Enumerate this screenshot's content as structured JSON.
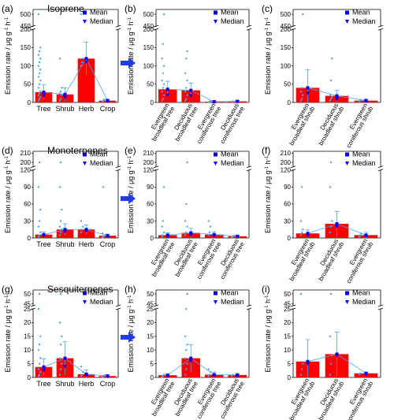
{
  "figure": {
    "legend": {
      "mean": "Mean",
      "median": "Median"
    },
    "ylabel_text": "Emission rate / μg g",
    "ylabel_sup": "-1",
    "ylabel_unit": " h",
    "colors": {
      "bar": "#ff0000",
      "mean": "#0000ff",
      "median": "#0000ff",
      "points": "#4da6e8",
      "line": "#4da6e8",
      "arrow": "#1f3ee6"
    }
  },
  "chart_data": [
    {
      "panel": "(a)",
      "title": "Isoprene",
      "type": "bar",
      "categories": [
        "Tree",
        "Shrub",
        "Herb",
        "Crop"
      ],
      "values": [
        28,
        22,
        120,
        5
      ],
      "mean": [
        28,
        22,
        120,
        5
      ],
      "median": [
        18,
        14,
        110,
        4
      ],
      "error": [
        20,
        18,
        45,
        4
      ],
      "points": [
        [
          5,
          10,
          15,
          20,
          25,
          30,
          40,
          50,
          60,
          70,
          80,
          90,
          100,
          110,
          120,
          130,
          140,
          150,
          500
        ],
        [
          5,
          10,
          20,
          25,
          30,
          40,
          120,
          500
        ],
        [
          100,
          110,
          120,
          500
        ],
        [
          3,
          5,
          8
        ]
      ],
      "yticks_low": [
        0,
        50,
        100,
        150,
        200
      ],
      "yticks_high": [
        450,
        500
      ],
      "ylim_low": [
        0,
        200
      ],
      "ylim_high": [
        450,
        520
      ]
    },
    {
      "panel": "(b)",
      "title": "",
      "type": "bar",
      "categories": [
        "Evergreen broadleaf tree",
        "Deciduous broadleaf tree",
        "Evergreen coniferous tree",
        "Deciduous coniferous tree"
      ],
      "values": [
        36,
        33,
        2,
        3
      ],
      "mean": [
        36,
        33,
        2,
        3
      ],
      "median": [
        20,
        18,
        1,
        2
      ],
      "error": [
        22,
        20,
        2,
        2
      ],
      "points": [
        [
          5,
          10,
          20,
          30,
          40,
          50,
          60,
          80,
          100,
          120,
          160,
          500
        ],
        [
          5,
          10,
          20,
          30,
          40,
          60,
          80,
          120,
          140
        ],
        [
          1,
          2,
          3
        ],
        [
          2,
          3
        ]
      ],
      "yticks_low": [
        0,
        50,
        100,
        150,
        200
      ],
      "yticks_high": [
        450,
        500
      ],
      "ylim_low": [
        0,
        200
      ],
      "ylim_high": [
        450,
        520
      ]
    },
    {
      "panel": "(c)",
      "title": "",
      "type": "bar",
      "categories": [
        "Evergreen broadleaf shrub",
        "Deciduous broadleaf shrub",
        "Evergreen coniferous shrub"
      ],
      "values": [
        40,
        18,
        5
      ],
      "mean": [
        40,
        18,
        5
      ],
      "median": [
        25,
        10,
        4
      ],
      "error": [
        50,
        15,
        4
      ],
      "points": [
        [
          5,
          10,
          20,
          30,
          40,
          500
        ],
        [
          5,
          10,
          15,
          20,
          60,
          120
        ],
        [
          3,
          5,
          7
        ]
      ],
      "yticks_low": [
        0,
        50,
        100,
        150,
        200
      ],
      "yticks_high": [
        450,
        500
      ],
      "ylim_low": [
        0,
        200
      ],
      "ylim_high": [
        450,
        520
      ]
    },
    {
      "panel": "(d)",
      "title": "Monoterpenes",
      "type": "bar",
      "categories": [
        "Tree",
        "Shrub",
        "Herb",
        "Crop"
      ],
      "values": [
        6,
        15,
        15,
        4
      ],
      "mean": [
        6,
        15,
        15,
        4
      ],
      "median": [
        4,
        12,
        13,
        3
      ],
      "error": [
        5,
        10,
        8,
        3
      ],
      "points": [
        [
          2,
          5,
          10,
          20,
          30,
          50,
          90,
          200
        ],
        [
          5,
          10,
          15,
          20,
          30,
          50,
          90,
          200
        ],
        [
          10,
          15,
          20,
          30
        ],
        [
          1,
          2,
          4,
          8,
          90
        ]
      ],
      "yticks_low": [
        0,
        30,
        60,
        90,
        120
      ],
      "yticks_high": [
        200,
        210
      ],
      "ylim_low": [
        0,
        120
      ],
      "ylim_high": [
        195,
        212
      ]
    },
    {
      "panel": "(e)",
      "title": "",
      "type": "bar",
      "categories": [
        "Evergreen broadleaf tree",
        "Deciduous broadleaf tree",
        "Evergreen coniferous tree",
        "Deciduous coniferous tree"
      ],
      "values": [
        5,
        9,
        6,
        3
      ],
      "mean": [
        5,
        9,
        6,
        3
      ],
      "median": [
        3,
        6,
        4,
        2
      ],
      "error": [
        4,
        8,
        5,
        2
      ],
      "points": [
        [
          2,
          5,
          10,
          20,
          30,
          90
        ],
        [
          5,
          10,
          20,
          30,
          60,
          200
        ],
        [
          5,
          10,
          20,
          30
        ],
        [
          1,
          2,
          4
        ]
      ],
      "yticks_low": [
        0,
        30,
        60,
        90,
        120
      ],
      "yticks_high": [
        200,
        210
      ],
      "ylim_low": [
        0,
        120
      ],
      "ylim_high": [
        195,
        212
      ]
    },
    {
      "panel": "(f)",
      "title": "",
      "type": "bar",
      "categories": [
        "Evergreen broadleaf shrub",
        "Deciduous broadleaf shrub",
        "Evergreen coniferous shrub"
      ],
      "values": [
        8,
        25,
        5
      ],
      "mean": [
        8,
        25,
        5
      ],
      "median": [
        5,
        20,
        4
      ],
      "error": [
        6,
        22,
        5
      ],
      "points": [
        [
          5,
          10,
          15,
          30,
          90
        ],
        [
          10,
          20,
          30,
          90,
          200
        ],
        [
          2,
          5,
          8
        ]
      ],
      "yticks_low": [
        0,
        30,
        60,
        90,
        120
      ],
      "yticks_high": [
        200,
        210
      ],
      "ylim_low": [
        0,
        120
      ],
      "ylim_high": [
        195,
        212
      ]
    },
    {
      "panel": "(g)",
      "title": "Sesquiterpenes",
      "type": "bar",
      "categories": [
        "Tree",
        "Shrub",
        "Herb",
        "Crop"
      ],
      "values": [
        3.8,
        7,
        1.2,
        0.5
      ],
      "mean": [
        3.8,
        7,
        1.2,
        0.5
      ],
      "median": [
        2.5,
        4,
        1,
        0.4
      ],
      "error": [
        3,
        6,
        1.5,
        0.5
      ],
      "points": [
        [
          0.5,
          1,
          2,
          3,
          5,
          7,
          10,
          12,
          15,
          25,
          50
        ],
        [
          1,
          3,
          5,
          7,
          12,
          15,
          20,
          50
        ],
        [
          0.5,
          1,
          2,
          4
        ],
        [
          0.2,
          0.5,
          0.8
        ]
      ],
      "yticks_low": [
        0,
        5,
        10,
        15,
        20,
        25
      ],
      "yticks_high": [
        45,
        50
      ],
      "ylim_low": [
        0,
        25
      ],
      "ylim_high": [
        44,
        52
      ]
    },
    {
      "panel": "(h)",
      "title": "",
      "type": "bar",
      "categories": [
        "Evergreen broadleaf tree",
        "Deciduous broadleaf tree",
        "Evergreen coniferous tree",
        "Deciduous coniferous tree"
      ],
      "values": [
        0.8,
        7,
        1,
        0.9
      ],
      "mean": [
        0.8,
        7,
        1,
        0.9
      ],
      "median": [
        0.5,
        6,
        0.7,
        0.7
      ],
      "error": [
        0.5,
        5,
        1,
        0.5
      ],
      "points": [
        [
          0.2,
          0.5,
          1
        ],
        [
          1,
          3,
          5,
          7,
          10,
          12,
          15,
          25,
          50
        ],
        [
          0.5,
          1,
          2,
          3
        ],
        [
          0.5,
          1
        ]
      ],
      "yticks_low": [
        0,
        5,
        10,
        15,
        20,
        25
      ],
      "yticks_high": [
        45,
        50
      ],
      "ylim_low": [
        0,
        25
      ],
      "ylim_high": [
        44,
        52
      ]
    },
    {
      "panel": "(i)",
      "title": "",
      "type": "bar",
      "categories": [
        "Evergreen broadleaf shrub",
        "Deciduous broadleaf shrub",
        "Evergreen coniferous shrub"
      ],
      "values": [
        5.8,
        8.5,
        1.5
      ],
      "mean": [
        5.8,
        8.5,
        1.5
      ],
      "median": [
        5,
        8,
        1.2
      ],
      "error": [
        8,
        8,
        0.5
      ],
      "points": [
        [
          1,
          3,
          5,
          50
        ],
        [
          1,
          5,
          8,
          15,
          50
        ],
        [
          1,
          1.5
        ]
      ],
      "yticks_low": [
        0,
        5,
        10,
        15,
        20,
        25
      ],
      "yticks_high": [
        45,
        50
      ],
      "ylim_low": [
        0,
        25
      ],
      "ylim_high": [
        44,
        52
      ]
    }
  ]
}
